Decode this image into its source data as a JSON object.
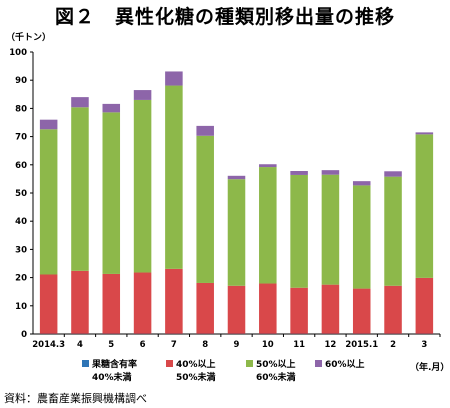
{
  "title": "図２　異性化糖の種類別移出量の推移",
  "unit_label": "（千トン）",
  "x_unit_label": "（年.月）",
  "source_note": "資料：農畜産業振興機構調べ",
  "legend": [
    {
      "label": "果糖含有率",
      "label2": "40%未満",
      "color": "#2e75b6"
    },
    {
      "label": "40%以上",
      "label2": "50%未満",
      "color": "#d9484a"
    },
    {
      "label": "50%以上",
      "label2": "60%未満",
      "color": "#8db84a"
    },
    {
      "label": "60%以上",
      "label2": "",
      "color": "#8d65a9"
    }
  ],
  "chart_data": {
    "type": "bar",
    "stacked": true,
    "title": "図２　異性化糖の種類別移出量の推移",
    "ylabel": "（千トン）",
    "xlabel": "（年.月）",
    "ylim": [
      0,
      100
    ],
    "yticks": [
      0,
      10,
      20,
      30,
      40,
      50,
      60,
      70,
      80,
      90,
      100
    ],
    "grid": false,
    "legend_position": "bottom",
    "categories": [
      "2014.3",
      "4",
      "5",
      "6",
      "7",
      "8",
      "9",
      "10",
      "11",
      "12",
      "2015.1",
      "2",
      "3"
    ],
    "series": [
      {
        "name": "果糖含有率40%未満",
        "color": "#2e75b6",
        "values": [
          0.1,
          0.1,
          0.1,
          0.1,
          0.1,
          0.1,
          0.1,
          0.1,
          0.1,
          0.1,
          0.1,
          0.1,
          0.1
        ]
      },
      {
        "name": "40%以上50%未満",
        "color": "#d9484a",
        "values": [
          21,
          22.3,
          21.2,
          21.7,
          23,
          18,
          17,
          17.8,
          16.3,
          17.4,
          16,
          17,
          19.8
        ]
      },
      {
        "name": "50%以上60%未満",
        "color": "#8db84a",
        "values": [
          51.5,
          58,
          57.3,
          61.2,
          65,
          52.2,
          37.8,
          41.3,
          40,
          39,
          36.6,
          38.7,
          50.9
        ]
      },
      {
        "name": "60%以上",
        "color": "#8d65a9",
        "values": [
          3.4,
          3.6,
          3,
          3.5,
          5,
          3.5,
          1.2,
          1,
          1.4,
          1.6,
          1.5,
          1.9,
          0.7
        ]
      }
    ]
  }
}
